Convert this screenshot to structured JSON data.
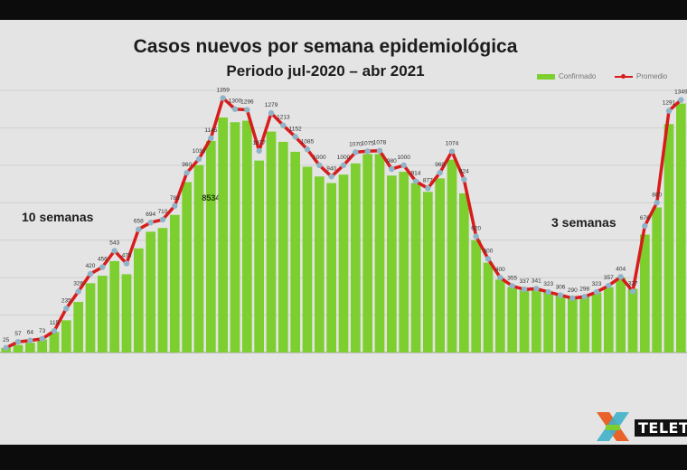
{
  "title": "Casos nuevos por semana epidemiológica",
  "subtitle": "Periodo jul-2020 – abr 2021",
  "legend": {
    "confirmado": "Confirmado",
    "promedio": "Promedio"
  },
  "annotations": {
    "left": "10 semanas",
    "right": "3 semanas"
  },
  "logo_text": "TELET",
  "colors": {
    "bar": "#7ccf2e",
    "line": "#d81c1c",
    "marker": "#8fb4c8",
    "background": "#e4e4e4"
  },
  "chart_data": {
    "type": "bar",
    "title": "Casos nuevos por semana epidemiológica",
    "subtitle": "Periodo jul-2020 – abr 2021",
    "ylim": [
      0,
      1400
    ],
    "grid": true,
    "legend_position": "top-right",
    "bar_labels": {
      "visible": [
        "",
        "",
        "",
        "",
        "",
        "",
        "",
        "",
        "",
        "",
        "",
        "",
        "",
        "",
        "",
        "",
        "",
        "8534",
        "",
        "",
        "",
        "",
        "",
        "",
        "",
        "",
        "",
        "",
        "",
        "",
        "",
        "",
        "",
        "",
        "",
        "",
        "",
        "",
        "",
        "",
        "",
        "",
        "",
        "",
        "",
        "",
        "",
        "",
        "",
        "",
        "",
        "",
        "",
        "",
        "",
        "",
        "",
        "",
        "",
        ""
      ]
    },
    "series": [
      {
        "name": "Confirmado",
        "kind": "bar",
        "values": [
          25,
          40,
          52,
          70,
          110,
          172,
          270,
          370,
          410,
          488,
          418,
          556,
          645,
          665,
          735,
          910,
          1001,
          1130,
          1255,
          1230,
          1238,
          1025,
          1180,
          1125,
          1072,
          992,
          940,
          905,
          950,
          1010,
          1060,
          1060,
          945,
          965,
          905,
          858,
          930,
          1030,
          850,
          600,
          480,
          390,
          350,
          332,
          335,
          320,
          306,
          292,
          300,
          320,
          349,
          400,
          340,
          630,
          775,
          1220,
          1330
        ]
      },
      {
        "name": "Promedio",
        "kind": "line",
        "values": [
          25,
          57,
          64,
          73,
          115,
          235,
          326,
          420,
          456,
          543,
          475,
          658,
          694,
          710,
          783,
          960,
          1033,
          1145,
          1359,
          1300,
          1296,
          1077,
          1279,
          1213,
          1152,
          1085,
          1000,
          940,
          1000,
          1070,
          1075,
          1078,
          980,
          1000,
          914,
          877,
          960,
          1074,
          924,
          620,
          500,
          400,
          355,
          337,
          341,
          323,
          306,
          290,
          298,
          323,
          357,
          404,
          327,
          676,
          800,
          1291,
          1349
        ]
      }
    ],
    "data_labels": [
      "25",
      "57",
      "64",
      "73",
      "115",
      "235",
      "326",
      "420",
      "456",
      "543",
      "475",
      "658",
      "694",
      "710",
      "783",
      "960",
      "1033",
      "1145",
      "1359",
      "1300",
      "1296",
      "1077",
      "1279",
      "1213",
      "1152",
      "1085",
      "1000",
      "940",
      "1000",
      "1070",
      "1075",
      "1078",
      "980",
      "1000",
      "914",
      "877",
      "960",
      "1074",
      "924",
      "620",
      "500",
      "400",
      "355",
      "337",
      "341",
      "323",
      "306",
      "290",
      "298",
      "323",
      "357",
      "404",
      "327",
      "676",
      "800",
      "1291",
      "1349"
    ]
  }
}
